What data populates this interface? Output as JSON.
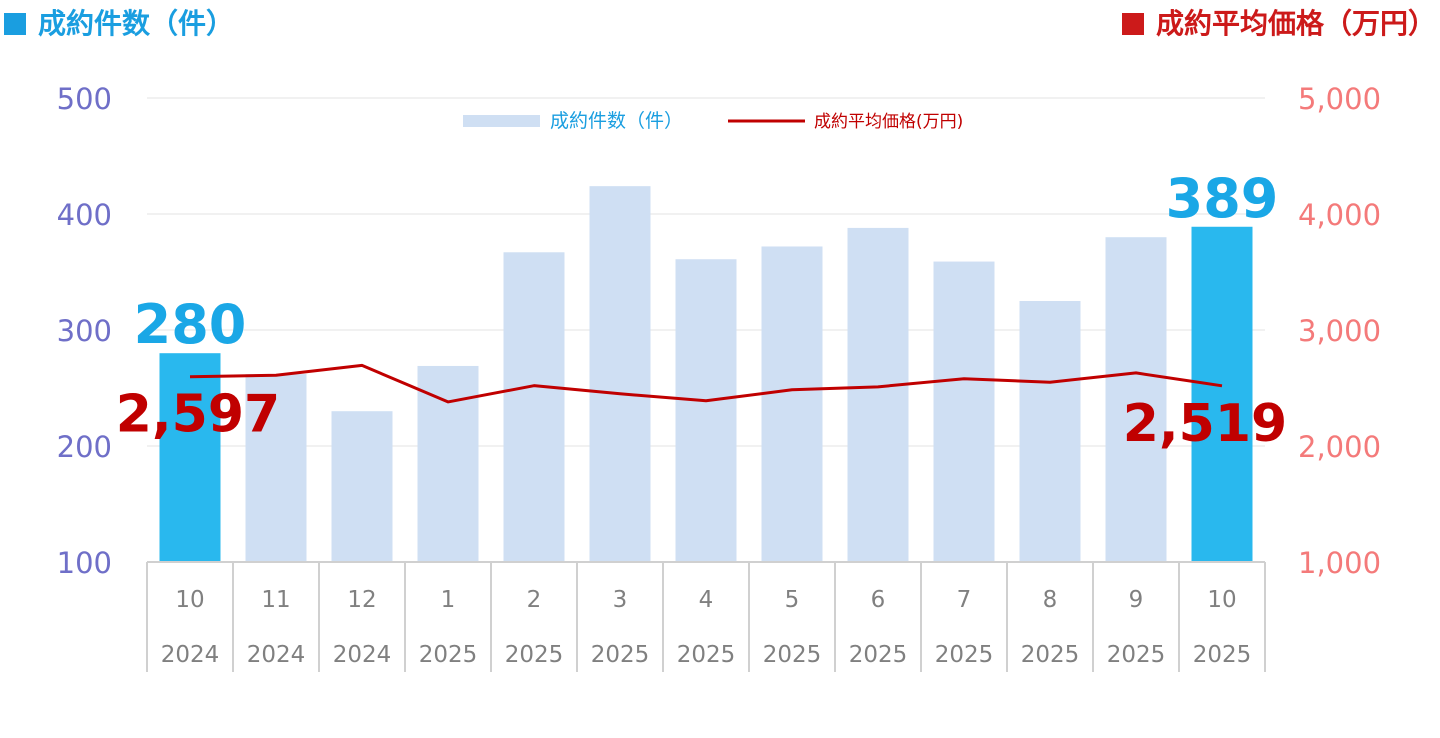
{
  "header": {
    "left_title": "成約件数（件）",
    "right_title": "成約平均価格（万円）"
  },
  "colors": {
    "bar": "#cfdff3",
    "bar_highlight": "#29b8ee",
    "line": "#c00000",
    "left_header": "#1a9ee0",
    "right_header": "#cc1a1a",
    "left_axis": "#6f6fc8",
    "right_axis": "#f47a7a",
    "bar_label": "#1aa7e6",
    "line_label": "#c00000",
    "category": "#808080"
  },
  "chart_data": {
    "type": "bar",
    "x": [
      "10",
      "11",
      "12",
      "1",
      "2",
      "3",
      "4",
      "5",
      "6",
      "7",
      "8",
      "9",
      "10"
    ],
    "x_years": [
      "2024",
      "2024",
      "2024",
      "2025",
      "2025",
      "2025",
      "2025",
      "2025",
      "2025",
      "2025",
      "2025",
      "2025",
      "2025"
    ],
    "series": [
      {
        "name": "成約件数（件）",
        "type": "bar",
        "axis": "left",
        "values": [
          280,
          262,
          230,
          269,
          367,
          424,
          361,
          372,
          388,
          359,
          325,
          380,
          389
        ]
      },
      {
        "name": "成約平均価格(万円)",
        "type": "line",
        "axis": "right",
        "values": [
          2597,
          2610,
          2695,
          2380,
          2520,
          2450,
          2390,
          2485,
          2510,
          2580,
          2550,
          2630,
          2519
        ]
      }
    ],
    "y_left": {
      "range": [
        100,
        500
      ],
      "ticks": [
        "100",
        "200",
        "300",
        "400",
        "500"
      ]
    },
    "y_right": {
      "range": [
        1000,
        5000
      ],
      "ticks": [
        "1,000",
        "2,000",
        "3,000",
        "4,000",
        "5,000"
      ]
    },
    "highlight_indices": [
      0,
      12
    ],
    "annotations": [
      {
        "text": "280",
        "series": 0,
        "index": 0
      },
      {
        "text": "389",
        "series": 0,
        "index": 12
      },
      {
        "text": "2,597",
        "series": 1,
        "index": 0
      },
      {
        "text": "2,519",
        "series": 1,
        "index": 12
      }
    ],
    "legend": "top-center",
    "grid": true
  }
}
